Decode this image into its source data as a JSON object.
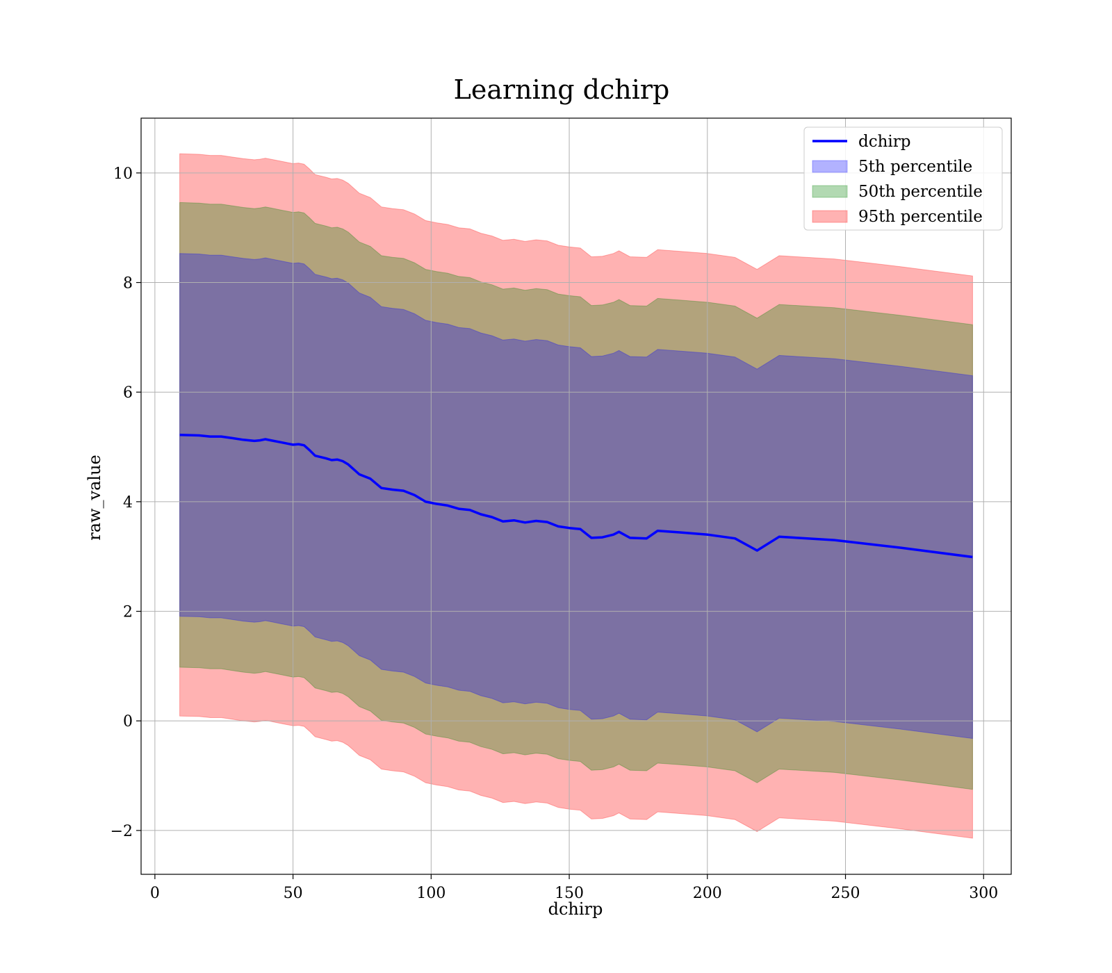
{
  "chart_data": {
    "type": "line",
    "title": "Learning dchirp",
    "xlabel": "dchirp",
    "ylabel": "raw_value",
    "xlim": [
      -5,
      310
    ],
    "ylim": [
      -2.8,
      11.0
    ],
    "xticks": [
      0,
      50,
      100,
      150,
      200,
      250,
      300
    ],
    "xtick_labels": [
      "0",
      "50",
      "100",
      "150",
      "200",
      "250",
      "300"
    ],
    "yticks": [
      -2,
      0,
      2,
      4,
      6,
      8,
      10
    ],
    "ytick_labels": [
      "−2",
      "0",
      "2",
      "4",
      "6",
      "8",
      "10"
    ],
    "grid": true,
    "legend_position": "top-right",
    "colors": {
      "line": "#0000ff",
      "band5": "#0000ff",
      "band50": "#008000",
      "band95": "#ff0000"
    },
    "x": [
      9,
      16,
      20,
      24,
      28,
      32,
      36,
      38,
      40,
      42,
      46,
      48,
      50,
      52,
      54,
      56,
      58,
      62,
      64,
      66,
      68,
      70,
      74,
      78,
      82,
      86,
      90,
      94,
      98,
      102,
      106,
      110,
      114,
      118,
      122,
      126,
      130,
      134,
      138,
      142,
      146,
      150,
      154,
      158,
      162,
      166,
      168,
      172,
      178,
      182,
      190,
      200,
      210,
      218,
      226,
      246,
      270,
      296
    ],
    "series": [
      {
        "name": "dchirp",
        "kind": "line",
        "values": [
          5.22,
          5.21,
          5.19,
          5.19,
          5.16,
          5.13,
          5.11,
          5.12,
          5.14,
          5.12,
          5.08,
          5.06,
          5.04,
          5.05,
          5.03,
          4.94,
          4.84,
          4.79,
          4.76,
          4.77,
          4.74,
          4.68,
          4.5,
          4.42,
          4.25,
          4.22,
          4.2,
          4.12,
          4.0,
          3.96,
          3.93,
          3.87,
          3.85,
          3.77,
          3.72,
          3.64,
          3.66,
          3.62,
          3.65,
          3.63,
          3.55,
          3.52,
          3.5,
          3.34,
          3.35,
          3.4,
          3.45,
          3.34,
          3.33,
          3.47,
          3.44,
          3.4,
          3.33,
          3.11,
          3.36,
          3.3,
          3.16,
          2.99
        ]
      },
      {
        "name": "5th percentile",
        "kind": "band",
        "offset": 3.31
      },
      {
        "name": "50th percentile",
        "kind": "band",
        "offset": 4.24
      },
      {
        "name": "95th percentile",
        "kind": "band",
        "offset": 5.13
      }
    ]
  }
}
